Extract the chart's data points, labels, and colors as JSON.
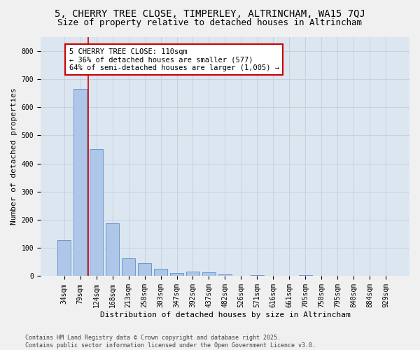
{
  "title1": "5, CHERRY TREE CLOSE, TIMPERLEY, ALTRINCHAM, WA15 7QJ",
  "title2": "Size of property relative to detached houses in Altrincham",
  "xlabel": "Distribution of detached houses by size in Altrincham",
  "ylabel": "Number of detached properties",
  "bar_labels": [
    "34sqm",
    "79sqm",
    "124sqm",
    "168sqm",
    "213sqm",
    "258sqm",
    "303sqm",
    "347sqm",
    "392sqm",
    "437sqm",
    "482sqm",
    "526sqm",
    "571sqm",
    "616sqm",
    "661sqm",
    "705sqm",
    "750sqm",
    "795sqm",
    "840sqm",
    "884sqm",
    "929sqm"
  ],
  "bar_values": [
    127,
    665,
    452,
    188,
    63,
    46,
    27,
    11,
    15,
    14,
    5,
    0,
    4,
    0,
    0,
    3,
    0,
    0,
    0,
    0,
    0
  ],
  "bar_color": "#aec6e8",
  "bar_edge_color": "#5b8fc9",
  "vline_color": "#cc0000",
  "vline_position": 1.5,
  "annotation_text": "5 CHERRY TREE CLOSE: 110sqm\n← 36% of detached houses are smaller (577)\n64% of semi-detached houses are larger (1,005) →",
  "annotation_box_color": "#ffffff",
  "annotation_box_edge": "#cc0000",
  "ylim": [
    0,
    850
  ],
  "yticks": [
    0,
    100,
    200,
    300,
    400,
    500,
    600,
    700,
    800
  ],
  "grid_color": "#c8d0dc",
  "bg_color": "#dce6f0",
  "fig_color": "#f0f0f0",
  "footer_text": "Contains HM Land Registry data © Crown copyright and database right 2025.\nContains public sector information licensed under the Open Government Licence v3.0.",
  "title1_fontsize": 10,
  "title2_fontsize": 9,
  "xlabel_fontsize": 8,
  "ylabel_fontsize": 8,
  "tick_fontsize": 7,
  "annotation_fontsize": 7.5,
  "footer_fontsize": 6
}
